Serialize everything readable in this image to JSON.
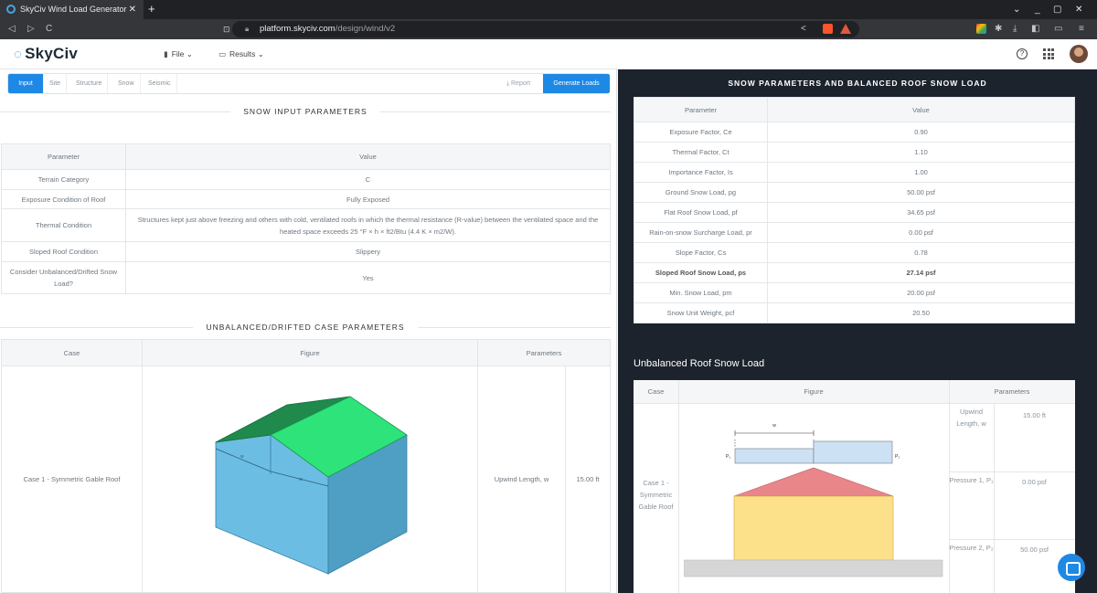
{
  "browser": {
    "tab_title": "SkyCiv Wind Load Generator",
    "tab_close": "✕",
    "new_tab": "+",
    "url_domain": "platform.skyciv.com",
    "url_path": "/design/wind/v2",
    "nav": {
      "back": "◁",
      "forward": "▷",
      "reload": "C"
    },
    "window_controls": {
      "chevron": "⌄",
      "minimize": "_",
      "restore": "▢",
      "close": "✕"
    }
  },
  "app": {
    "logo": "SkyCiv",
    "menu_file": "File",
    "menu_results": "Results",
    "help": "?"
  },
  "left": {
    "tabs": [
      "Input",
      "Site",
      "Structure",
      "Snow",
      "Seismic"
    ],
    "report": "Report",
    "generate": "Generate Loads",
    "snow_input_title": "SNOW INPUT PARAMETERS",
    "input_table": {
      "headers": [
        "Parameter",
        "Value"
      ],
      "rows": [
        {
          "param": "Terrain Category",
          "value": "C"
        },
        {
          "param": "Exposure Condition of Roof",
          "value": "Fully Exposed"
        },
        {
          "param": "Thermal Condition",
          "value": "Structures kept just above freezing and others with cold, ventilated roofs in which the thermal resistance (R-value) between the ventilated space and the heated space exceeds 25 °F × h × ft2/Btu (4.4 K × m2/W)."
        },
        {
          "param": "Sloped Roof Condition",
          "value": "Slippery"
        },
        {
          "param": "Consider Unbalanced/Drifted Snow Load?",
          "value": "Yes"
        }
      ]
    },
    "unbalanced_title": "UNBALANCED/DRIFTED CASE PARAMETERS",
    "case_table": {
      "headers": [
        "Case",
        "Figure",
        "Parameters"
      ],
      "case": "Case 1 - Symmetric Gable Roof",
      "param_label": "Upwind Length, w",
      "param_value": "15.00 ft"
    }
  },
  "right": {
    "title": "SNOW PARAMETERS AND BALANCED ROOF SNOW LOAD",
    "table": {
      "headers": [
        "Parameter",
        "Value"
      ],
      "rows": [
        {
          "param": "Exposure Factor, Ce",
          "value": "0.90"
        },
        {
          "param": "Thermal Factor, Ct",
          "value": "1.10"
        },
        {
          "param": "Importance Factor, Is",
          "value": "1.00"
        },
        {
          "param": "Ground Snow Load, pg",
          "value": "50.00 psf"
        },
        {
          "param": "Flat Roof Snow Load, pf",
          "value": "34.65 psf"
        },
        {
          "param": "Rain-on-snow Surcharge Load, pr",
          "value": "0.00 psf"
        },
        {
          "param": "Slope Factor, Cs",
          "value": "0.78"
        },
        {
          "param": "Sloped Roof Snow Load, ps",
          "value": "27.14 psf"
        },
        {
          "param": "Min. Snow Load, pm",
          "value": "20.00 psf"
        },
        {
          "param": "Snow Unit Weight, pcf",
          "value": "20.50"
        }
      ]
    },
    "unbalanced_title": "Unbalanced Roof Snow Load",
    "utable": {
      "headers": [
        "Case",
        "Figure",
        "Parameters"
      ],
      "case": "Case 1 - Symmetric Gable Roof",
      "figure_w": "w",
      "figure_p1": "P₁",
      "figure_p2": "P₂",
      "params": [
        {
          "label": "Upwind Length, w",
          "value": "15.00 ft"
        },
        {
          "label": "Pressure 1, P₁",
          "value": "0.00 psf"
        },
        {
          "label": "Pressure 2, P₂",
          "value": "50.00 psf"
        }
      ]
    }
  },
  "colors": {
    "accent": "#1e88e5",
    "dark_panel": "#1d232d",
    "roof_green": "#2ee47a",
    "wall_blue": "#5fb3d9",
    "roof_red": "#e8868a",
    "wall_yellow": "#fde08a"
  }
}
